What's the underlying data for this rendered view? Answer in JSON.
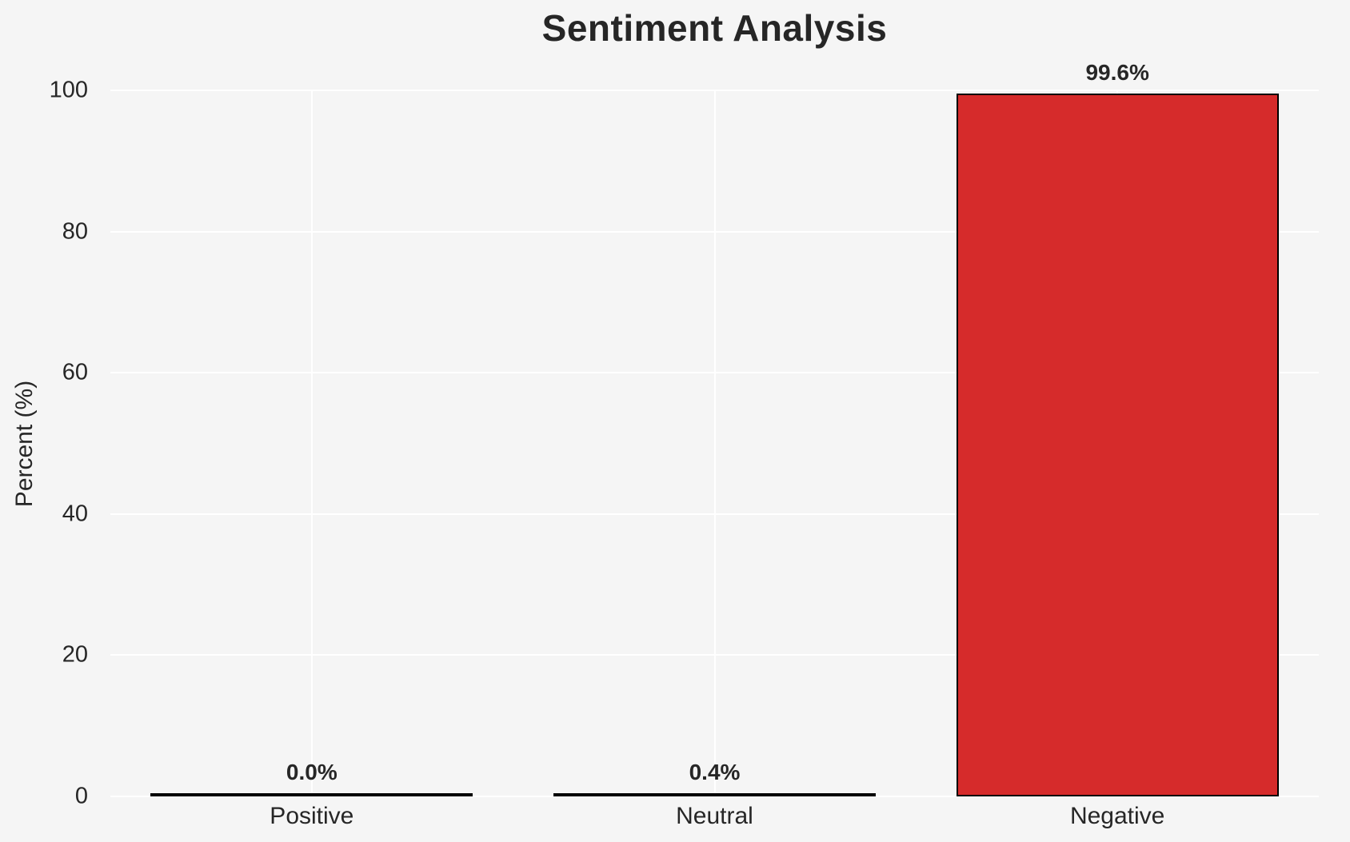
{
  "figure": {
    "background_color": "#f5f5f5",
    "grid_color": "#ffffff",
    "text_color": "#262626"
  },
  "chart_data": {
    "type": "bar",
    "title": "Sentiment Analysis",
    "xlabel": "",
    "ylabel": "Percent (%)",
    "categories": [
      "Positive",
      "Neutral",
      "Negative"
    ],
    "values": [
      0.0,
      0.4,
      99.6
    ],
    "value_labels": [
      "0.0%",
      "0.4%",
      "99.6%"
    ],
    "bar_colors": [
      "#1a1a1a",
      "#1a1a1a",
      "#d62b2b"
    ],
    "bar_edge_color": "#000000",
    "yticks": [
      0,
      20,
      40,
      60,
      80,
      100
    ],
    "ylim": [
      0,
      105
    ],
    "grid": "on",
    "legend": "none"
  }
}
